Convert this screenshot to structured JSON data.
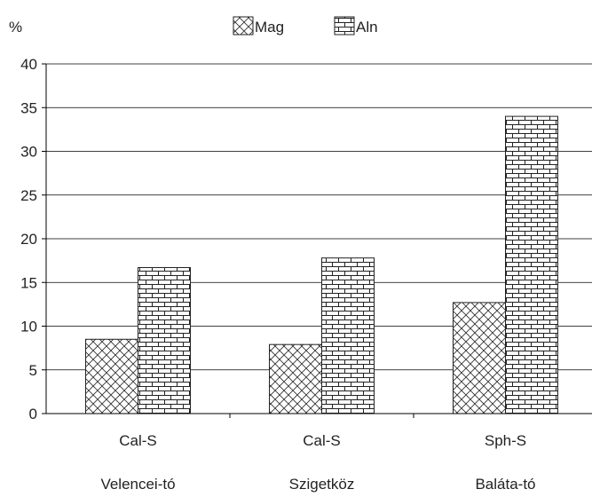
{
  "chart_data": {
    "type": "bar",
    "ylabel": "%",
    "ylim": [
      0,
      40
    ],
    "yticks": [
      0,
      5,
      10,
      15,
      20,
      25,
      30,
      35,
      40
    ],
    "grid": true,
    "legend_position": "top-center",
    "categories": [
      "Cal-S",
      "Cal-S",
      "Sph-S"
    ],
    "sites": [
      "Velencei-tó",
      "Szigetköz",
      "Baláta-tó"
    ],
    "series": [
      {
        "name": "Mag",
        "pattern": "crosshatch-icon",
        "values": [
          8.5,
          7.9,
          12.7
        ]
      },
      {
        "name": "Aln",
        "pattern": "brick-icon",
        "values": [
          16.7,
          17.8,
          34.0
        ]
      }
    ]
  }
}
